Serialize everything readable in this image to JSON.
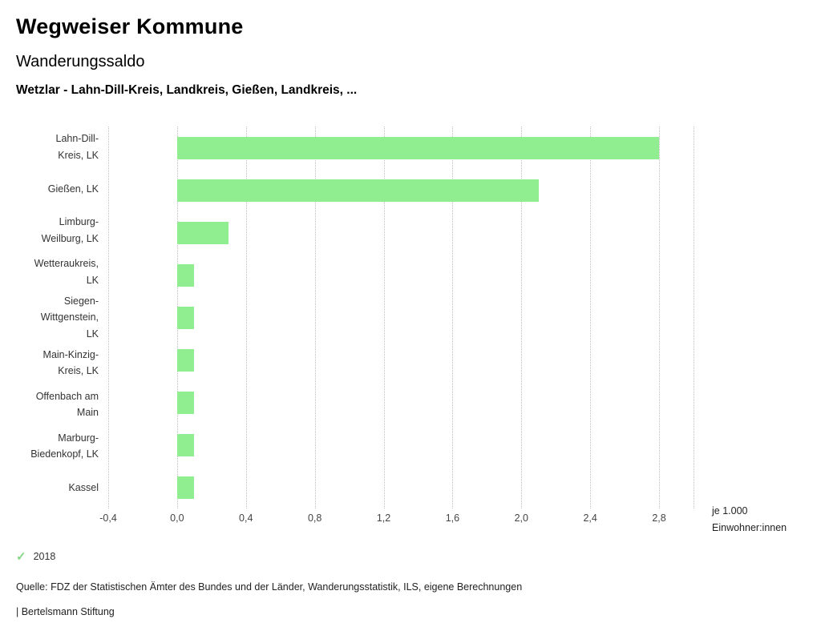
{
  "header": {
    "title": "Wegweiser Kommune",
    "subtitle": "Wanderungssaldo",
    "chart_title": "Wetzlar - Lahn-Dill-Kreis, Landkreis, Gießen, Landkreis, ..."
  },
  "chart_data": {
    "type": "bar",
    "orientation": "horizontal",
    "categories": [
      "Lahn-Dill-Kreis, LK",
      "Gießen, LK",
      "Limburg-Weilburg, LK",
      "Wetteraukreis, LK",
      "Siegen-Wittgenstein, LK",
      "Main-Kinzig-Kreis, LK",
      "Offenbach am Main",
      "Marburg-Biedenkopf, LK",
      "Kassel"
    ],
    "category_lines": [
      [
        "Lahn-Dill-",
        "Kreis, LK"
      ],
      [
        "Gießen, LK"
      ],
      [
        "Limburg-",
        "Weilburg, LK"
      ],
      [
        "Wetteraukreis,",
        "LK"
      ],
      [
        "Siegen-",
        "Wittgenstein,",
        "LK"
      ],
      [
        "Main-Kinzig-",
        "Kreis, LK"
      ],
      [
        "Offenbach am",
        "Main"
      ],
      [
        "Marburg-",
        "Biedenkopf, LK"
      ],
      [
        "Kassel"
      ]
    ],
    "values": [
      2.8,
      2.1,
      0.3,
      0.1,
      0.1,
      0.1,
      0.1,
      0.1,
      0.1
    ],
    "xlim": [
      -0.4,
      3.0
    ],
    "xticks": [
      -0.4,
      0.0,
      0.4,
      0.8,
      1.2,
      1.6,
      2.0,
      2.4,
      2.8
    ],
    "xtick_labels": [
      "-0,4",
      "0,0",
      "0,4",
      "0,8",
      "1,2",
      "1,6",
      "2,0",
      "2,4",
      "2,8"
    ],
    "bar_color": "#90ee90",
    "grid": "dotted-vertical",
    "unit_label_lines": [
      "je 1.000",
      "Einwohner:innen"
    ]
  },
  "legend": {
    "year": "2018",
    "check_icon": "check-icon",
    "check_color": "#85d685"
  },
  "footer": {
    "source": "Quelle: FDZ der Statistischen Ämter des Bundes und der Länder, Wanderungsstatistik, ILS, eigene Berechnungen",
    "branding": "| Bertelsmann Stiftung"
  }
}
